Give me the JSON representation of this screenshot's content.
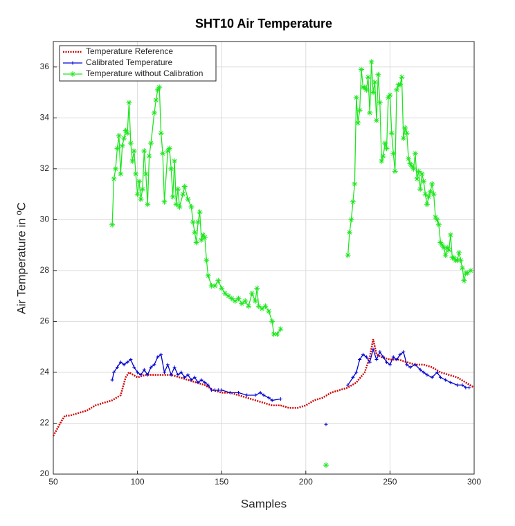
{
  "chart_data": {
    "type": "line",
    "title": "SHT10 Air Temperature",
    "xlabel": "Samples",
    "ylabel": "Air Temperature in ºC",
    "xlim": [
      50,
      300
    ],
    "ylim": [
      20,
      37
    ],
    "xticks": [
      50,
      100,
      150,
      200,
      250,
      300
    ],
    "yticks": [
      20,
      22,
      24,
      26,
      28,
      30,
      32,
      34,
      36
    ],
    "grid": true,
    "legend": "upper left",
    "series": [
      {
        "name": "Temperature Reference",
        "color": "#d40000",
        "linestyle": "dotted",
        "marker": "none",
        "x": [
          50,
          55,
          57,
          60,
          65,
          70,
          75,
          80,
          85,
          90,
          93,
          95,
          100,
          105,
          110,
          115,
          120,
          125,
          130,
          135,
          140,
          145,
          150,
          155,
          160,
          165,
          170,
          175,
          180,
          185,
          190,
          195,
          200,
          205,
          210,
          215,
          220,
          225,
          230,
          235,
          238,
          240,
          242,
          245,
          250,
          255,
          260,
          265,
          270,
          275,
          280,
          285,
          290,
          295,
          300
        ],
        "values": [
          21.5,
          22.1,
          22.3,
          22.3,
          22.4,
          22.5,
          22.7,
          22.8,
          22.9,
          23.1,
          23.8,
          24.0,
          23.8,
          23.9,
          23.9,
          23.9,
          23.9,
          23.8,
          23.7,
          23.6,
          23.5,
          23.3,
          23.2,
          23.2,
          23.1,
          23.0,
          22.9,
          22.8,
          22.7,
          22.7,
          22.6,
          22.6,
          22.7,
          22.9,
          23.0,
          23.2,
          23.3,
          23.4,
          23.6,
          24.0,
          24.6,
          25.3,
          24.7,
          24.6,
          24.5,
          24.5,
          24.4,
          24.3,
          24.3,
          24.2,
          24.0,
          23.9,
          23.8,
          23.6,
          23.4
        ]
      },
      {
        "name": "Calibrated Temperature",
        "color": "#0000d0",
        "linestyle": "solid",
        "marker": "plus",
        "x": [
          85,
          86,
          88,
          90,
          92,
          94,
          96,
          98,
          100,
          102,
          104,
          106,
          108,
          110,
          112,
          114,
          116,
          118,
          120,
          122,
          124,
          126,
          128,
          130,
          132,
          134,
          136,
          138,
          140,
          142,
          144,
          146,
          148,
          150,
          155,
          160,
          165,
          170,
          173,
          175,
          178,
          180,
          185,
          200,
          212,
          218,
          225,
          228,
          230,
          232,
          234,
          236,
          238,
          240,
          242,
          244,
          246,
          248,
          250,
          252,
          254,
          256,
          258,
          260,
          262,
          265,
          268,
          270,
          272,
          275,
          278,
          280,
          283,
          286,
          290,
          293,
          295,
          297
        ],
        "values": [
          23.7,
          24.0,
          24.2,
          24.4,
          24.3,
          24.4,
          24.5,
          24.2,
          24.0,
          23.9,
          24.1,
          23.9,
          24.2,
          24.3,
          24.6,
          24.7,
          24.0,
          24.3,
          23.9,
          24.2,
          23.9,
          24.0,
          23.8,
          23.9,
          23.7,
          23.8,
          23.6,
          23.7,
          23.6,
          23.5,
          23.3,
          23.3,
          23.3,
          23.3,
          23.2,
          23.2,
          23.1,
          23.1,
          23.2,
          23.1,
          23.0,
          22.9,
          22.95,
          null,
          21.95,
          null,
          23.5,
          23.8,
          24.0,
          24.5,
          24.7,
          24.6,
          24.4,
          24.9,
          24.5,
          24.8,
          24.6,
          24.4,
          24.3,
          24.6,
          24.5,
          24.7,
          24.8,
          24.3,
          24.2,
          24.3,
          24.1,
          24.0,
          23.9,
          23.8,
          24.0,
          23.8,
          23.7,
          23.6,
          23.5,
          23.5,
          23.4,
          23.4
        ]
      },
      {
        "name": "Temperature without Calibration",
        "color": "#1ee61e",
        "linestyle": "solid",
        "marker": "star",
        "x": [
          85,
          86,
          87,
          88,
          89,
          90,
          91,
          92,
          93,
          94,
          95,
          96,
          97,
          98,
          99,
          100,
          101,
          102,
          103,
          104,
          105,
          106,
          107,
          108,
          110,
          111,
          112,
          113,
          114,
          115,
          116,
          118,
          119,
          120,
          121,
          122,
          123,
          124,
          125,
          127,
          128,
          130,
          132,
          133,
          134,
          135,
          136,
          137,
          138,
          139,
          140,
          141,
          142,
          144,
          146,
          148,
          150,
          152,
          154,
          156,
          158,
          160,
          162,
          164,
          166,
          168,
          170,
          171,
          172,
          174,
          176,
          178,
          180,
          181,
          183,
          185,
          200,
          212,
          218,
          225,
          226,
          227,
          228,
          229,
          230,
          231,
          232,
          233,
          234,
          235,
          236,
          237,
          238,
          239,
          240,
          241,
          242,
          243,
          244,
          245,
          246,
          247,
          248,
          249,
          250,
          251,
          252,
          253,
          254,
          255,
          256,
          257,
          258,
          259,
          260,
          261,
          262,
          263,
          264,
          265,
          266,
          267,
          268,
          269,
          270,
          271,
          272,
          273,
          274,
          275,
          276,
          277,
          278,
          279,
          280,
          281,
          282,
          283,
          284,
          285,
          286,
          287,
          288,
          289,
          290,
          291,
          292,
          293,
          294,
          295,
          296,
          298
        ],
        "values": [
          29.8,
          31.6,
          32.0,
          32.8,
          33.3,
          31.8,
          32.9,
          33.2,
          33.5,
          33.4,
          34.6,
          33.0,
          32.3,
          32.7,
          31.8,
          31.0,
          31.5,
          30.8,
          31.2,
          32.7,
          31.8,
          30.6,
          32.5,
          33.0,
          34.2,
          34.7,
          35.1,
          35.2,
          33.4,
          32.6,
          30.7,
          32.7,
          32.8,
          32.0,
          30.9,
          32.3,
          30.6,
          31.2,
          30.5,
          31.0,
          31.3,
          30.8,
          30.5,
          29.9,
          29.5,
          29.1,
          29.9,
          30.3,
          29.2,
          29.4,
          29.3,
          28.4,
          27.8,
          27.4,
          27.4,
          27.6,
          27.3,
          27.1,
          27.0,
          26.9,
          26.8,
          26.9,
          26.7,
          26.8,
          26.6,
          27.1,
          26.8,
          27.3,
          26.6,
          26.5,
          26.6,
          26.4,
          26.0,
          25.5,
          25.5,
          25.7,
          null,
          20.35,
          null,
          28.6,
          29.5,
          30.0,
          30.7,
          31.4,
          34.8,
          33.8,
          34.3,
          35.9,
          35.2,
          35.2,
          35.1,
          35.6,
          34.2,
          36.2,
          35.0,
          35.4,
          33.9,
          35.7,
          34.6,
          32.3,
          32.5,
          33.0,
          32.8,
          34.8,
          34.9,
          33.4,
          32.6,
          31.9,
          35.1,
          35.3,
          35.3,
          35.6,
          33.2,
          33.6,
          33.4,
          32.4,
          32.2,
          32.1,
          32.0,
          32.6,
          31.6,
          31.9,
          31.2,
          31.8,
          31.5,
          31.0,
          30.6,
          30.9,
          31.1,
          31.4,
          31.0,
          30.1,
          30.0,
          29.8,
          29.1,
          29.0,
          28.9,
          28.6,
          28.9,
          28.8,
          29.4,
          28.5,
          28.5,
          28.4,
          28.4,
          28.7,
          28.4,
          28.1,
          27.6,
          27.9,
          27.9,
          28.0
        ]
      }
    ]
  }
}
